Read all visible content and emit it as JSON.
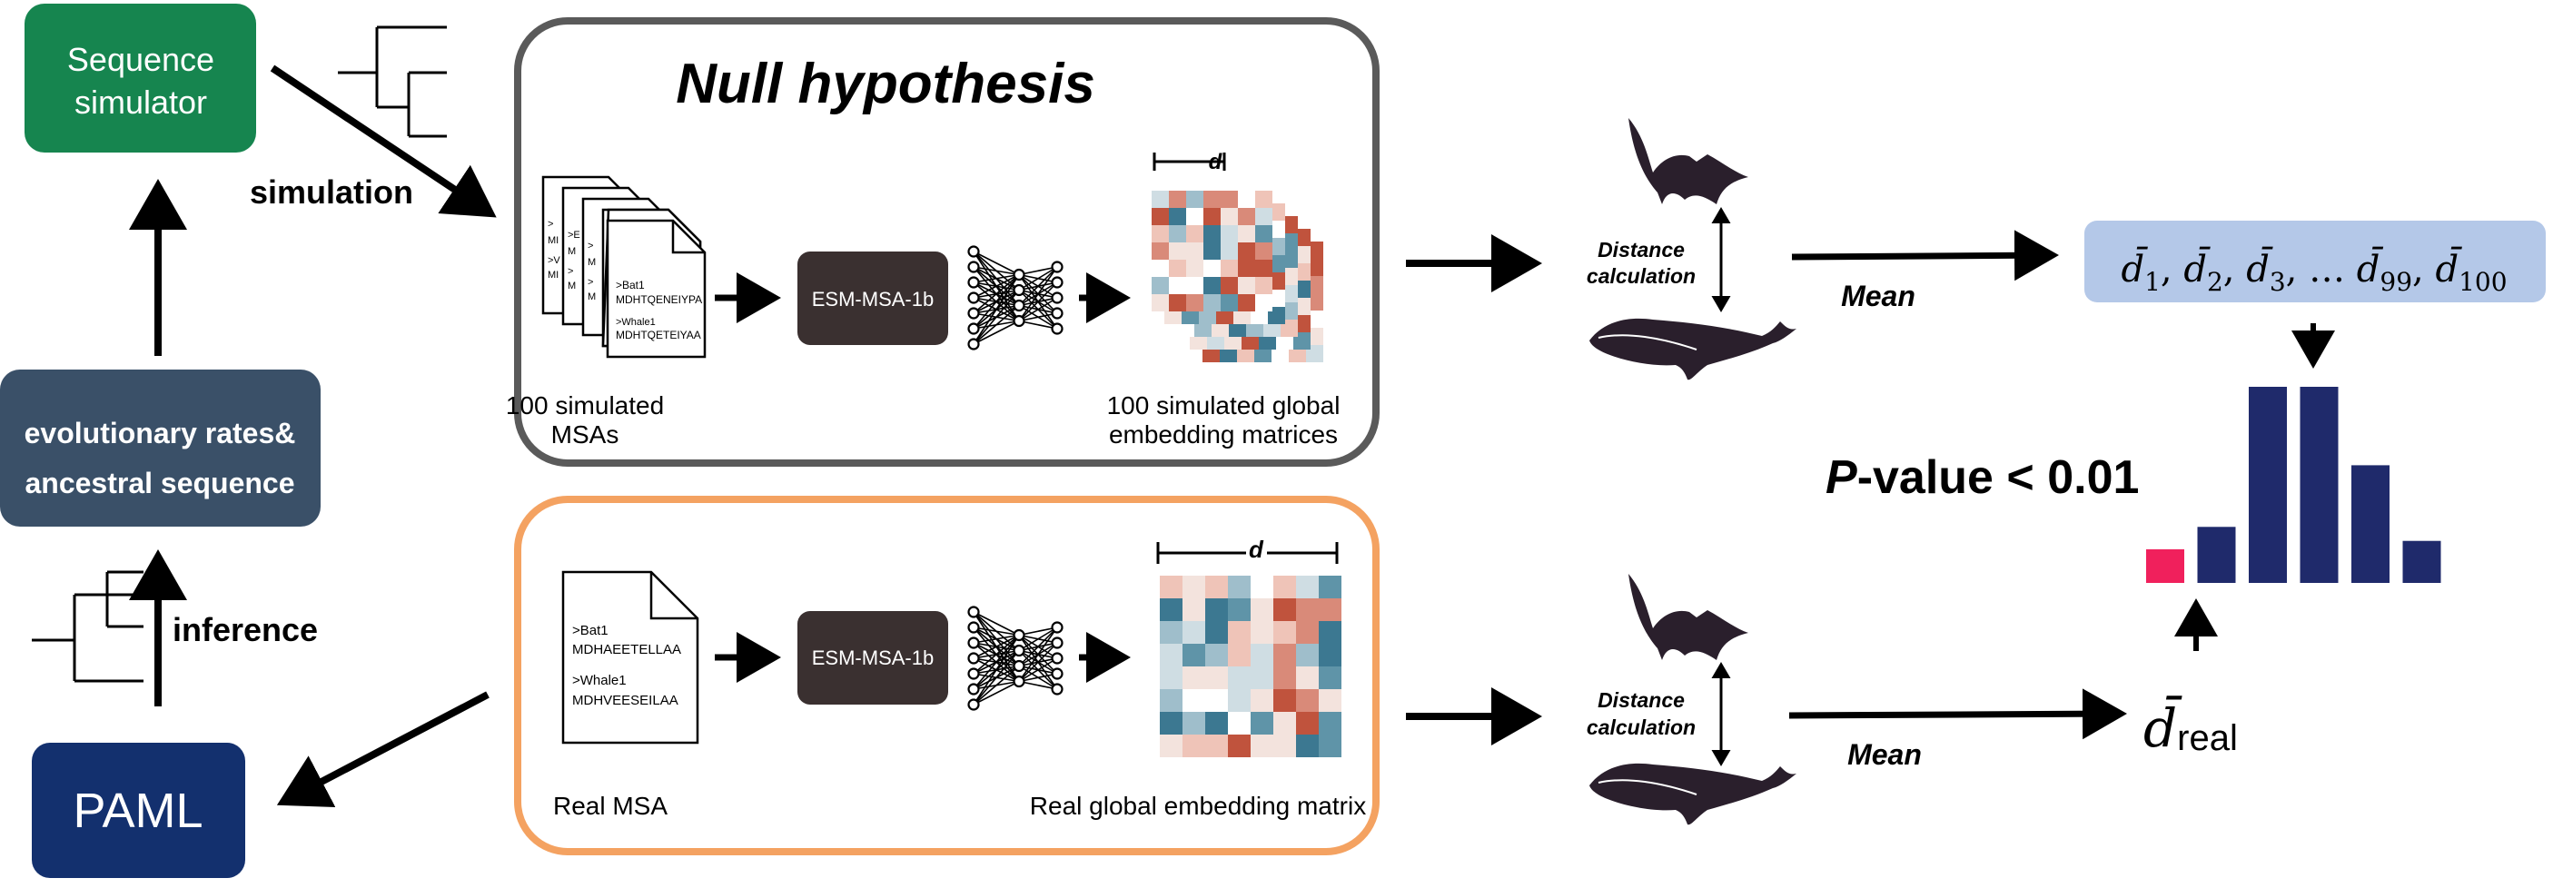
{
  "left_flow": {
    "simulator_label_line1": "Sequence",
    "simulator_label_line2": "simulator",
    "rates_label_line1": "evolutionary rates&",
    "rates_label_line2": "ancestral sequence",
    "paml_label": "PAML",
    "simulation_label": "simulation",
    "inference_label": "inference"
  },
  "null_panel": {
    "title": "Null hypothesis",
    "msa_label_line1": "100 simulated",
    "msa_label_line2": "MSAs",
    "doc_lines": [
      ">Bat1",
      "MDHTQENEIYPA",
      ">Whale1",
      "MDHTQETEIYAA"
    ],
    "model_label": "ESM-MSA-1b",
    "d_label": "d",
    "emb_label_line1": "100 simulated global",
    "emb_label_line2": "embedding matrices"
  },
  "real_panel": {
    "doc_lines": [
      ">Bat1",
      "MDHAEETELLAA",
      ">Whale1",
      "MDHVEESEILAA"
    ],
    "model_label": "ESM-MSA-1b",
    "d_label": "d",
    "msa_label": "Real MSA",
    "emb_label": "Real global embedding matrix"
  },
  "right_flow": {
    "distance_line1": "Distance",
    "distance_line2": "calculation",
    "mean_label": "Mean",
    "dbar_symbol": "d̄",
    "null_means": [
      "1",
      "2",
      "3",
      "…",
      "99",
      "100"
    ],
    "real_sub": "real",
    "pvalue_p": "P",
    "pvalue_rest": "-value < 0.01"
  },
  "chart_data": {
    "type": "bar",
    "values": [
      0.6,
      1.0,
      3.5,
      3.5,
      2.1,
      0.75
    ],
    "highlight_index": 0,
    "bar_color": "#1f2a6b",
    "highlight_color": "#f0205c"
  },
  "colors": {
    "simulator": "#16854f",
    "rates": "#3a5068",
    "paml": "#13306e",
    "null_border": "#5a5a5a",
    "real_border": "#f4a261",
    "model_box": "#3a3030",
    "means_box": "#b4c8e8",
    "animal": "#2a1f2c"
  },
  "icons": [
    "tree-icon",
    "document-icon",
    "neural-network-icon",
    "heatmap-icon",
    "bat-icon",
    "whale-icon"
  ]
}
